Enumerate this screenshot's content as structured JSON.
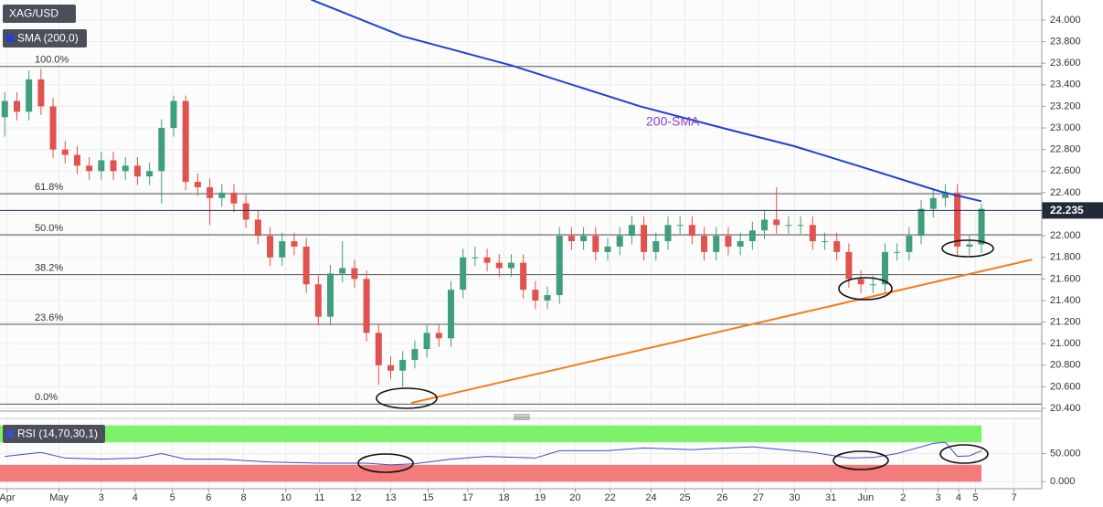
{
  "chart_data": [
    {
      "type": "candlestick",
      "title": "XAG/USD",
      "x": [
        0,
        1,
        2,
        3,
        4,
        5,
        6,
        7,
        8,
        9,
        10,
        11,
        12,
        13,
        14,
        15,
        16,
        17,
        18,
        19,
        20,
        21,
        22,
        23,
        24,
        25,
        26,
        27,
        28,
        29,
        30,
        31,
        32,
        33,
        34,
        35,
        36,
        37,
        38,
        39,
        40,
        41,
        42,
        43,
        44,
        45,
        46,
        47,
        48,
        49,
        50,
        51,
        52,
        53,
        54,
        55,
        56,
        57,
        58,
        59,
        60,
        61,
        62,
        63,
        64,
        65,
        66,
        67,
        68,
        69,
        70,
        71,
        72,
        73,
        74,
        75,
        76,
        77,
        78,
        79,
        80,
        81
      ],
      "open": [
        23.1,
        23.25,
        23.15,
        23.45,
        23.2,
        22.8,
        22.75,
        22.65,
        22.6,
        22.7,
        22.6,
        22.65,
        22.55,
        22.6,
        23.0,
        23.25,
        22.5,
        22.45,
        22.35,
        22.4,
        22.3,
        22.15,
        22.0,
        21.8,
        21.95,
        21.9,
        21.55,
        21.25,
        21.65,
        21.7,
        21.6,
        21.1,
        20.8,
        20.75,
        20.85,
        20.95,
        21.1,
        21.05,
        21.5,
        21.8,
        21.8,
        21.75,
        21.7,
        21.75,
        21.5,
        21.4,
        21.45,
        22.0,
        21.95,
        22.0,
        21.85,
        21.9,
        22.0,
        22.1,
        21.85,
        21.95,
        22.1,
        22.1,
        22.0,
        21.85,
        22.0,
        21.9,
        21.95,
        22.05,
        22.15,
        22.1,
        22.1,
        22.1,
        21.95,
        21.95,
        21.85,
        21.6,
        21.55,
        21.55,
        21.85,
        21.85,
        22.0,
        22.25,
        22.35,
        22.4,
        21.9,
        21.92
      ],
      "high": [
        23.33,
        23.33,
        23.53,
        23.55,
        23.28,
        22.88,
        22.83,
        22.73,
        22.78,
        22.78,
        22.73,
        22.73,
        22.68,
        23.08,
        23.3,
        23.3,
        22.58,
        22.53,
        22.48,
        22.48,
        22.38,
        22.23,
        22.08,
        22.03,
        22.03,
        21.98,
        21.63,
        21.73,
        21.95,
        21.78,
        21.68,
        21.18,
        20.88,
        20.93,
        21.03,
        21.18,
        21.18,
        21.58,
        21.88,
        21.9,
        21.88,
        21.83,
        21.83,
        21.83,
        21.58,
        21.53,
        22.08,
        22.08,
        22.08,
        22.08,
        21.98,
        22.08,
        22.18,
        22.18,
        22.03,
        22.18,
        22.18,
        22.18,
        22.08,
        22.08,
        22.08,
        22.03,
        22.13,
        22.23,
        22.45,
        22.18,
        22.18,
        22.18,
        22.03,
        22.03,
        21.93,
        21.68,
        21.63,
        21.93,
        21.93,
        22.08,
        22.33,
        22.43,
        22.48,
        22.48,
        22.0,
        22.3
      ],
      "low": [
        22.92,
        23.07,
        23.07,
        23.12,
        22.72,
        22.67,
        22.57,
        22.52,
        22.52,
        22.52,
        22.52,
        22.47,
        22.47,
        22.3,
        22.92,
        22.42,
        22.37,
        22.1,
        22.27,
        22.22,
        22.07,
        21.92,
        21.72,
        21.72,
        21.82,
        21.47,
        21.17,
        21.17,
        21.57,
        21.52,
        21.02,
        20.62,
        20.67,
        20.6,
        20.77,
        20.87,
        20.97,
        20.97,
        21.42,
        21.72,
        21.67,
        21.62,
        21.62,
        21.42,
        21.32,
        21.32,
        21.37,
        21.87,
        21.87,
        21.77,
        21.77,
        21.82,
        21.92,
        21.77,
        21.77,
        21.87,
        22.02,
        21.92,
        21.77,
        21.77,
        21.82,
        21.82,
        21.87,
        21.97,
        22.02,
        22.02,
        22.02,
        21.87,
        21.87,
        21.77,
        21.52,
        21.47,
        21.47,
        21.47,
        21.77,
        21.77,
        21.92,
        22.17,
        22.27,
        21.82,
        21.82,
        21.84
      ],
      "close": [
        23.25,
        23.15,
        23.45,
        23.2,
        22.8,
        22.75,
        22.65,
        22.6,
        22.7,
        22.6,
        22.65,
        22.55,
        22.6,
        23.0,
        23.25,
        22.5,
        22.45,
        22.35,
        22.4,
        22.3,
        22.15,
        22.0,
        21.8,
        21.95,
        21.9,
        21.55,
        21.25,
        21.65,
        21.7,
        21.6,
        21.1,
        20.8,
        20.75,
        20.85,
        20.95,
        21.1,
        21.05,
        21.5,
        21.8,
        21.8,
        21.75,
        21.7,
        21.75,
        21.5,
        21.4,
        21.45,
        22.0,
        21.95,
        22.0,
        21.85,
        21.9,
        22.0,
        22.1,
        21.85,
        21.95,
        22.1,
        22.1,
        22.0,
        21.85,
        22.0,
        21.9,
        21.95,
        22.05,
        22.15,
        22.1,
        22.1,
        22.1,
        21.95,
        21.95,
        21.85,
        21.6,
        21.55,
        21.55,
        21.85,
        21.85,
        22.0,
        22.25,
        22.35,
        22.4,
        21.9,
        21.92,
        22.25
      ],
      "up_color": "#3f9e7b",
      "down_color": "#e0524e",
      "overlays": [
        {
          "name": "SMA (200,0)",
          "color": "#1f3fd6",
          "x": [
            25.4,
            33,
            42,
            52.7,
            60.2,
            65.5,
            71.6,
            77.6,
            81
          ],
          "values": [
            24.19,
            23.85,
            23.58,
            23.2,
            22.98,
            22.83,
            22.62,
            22.41,
            22.32
          ]
        },
        {
          "color": "#f07f1e",
          "x": [
            33.7,
            85.2
          ],
          "values": [
            20.45,
            21.78
          ]
        }
      ],
      "fib_levels": [
        {
          "label": "100.0%",
          "value": 23.57
        },
        {
          "label": "61.8%",
          "value": 22.39
        },
        {
          "label": "50.0%",
          "value": 22.01
        },
        {
          "label": "38.2%",
          "value": 21.64
        },
        {
          "label": "23.6%",
          "value": 21.18
        },
        {
          "label": "0.0%",
          "value": 20.44
        }
      ],
      "annotations": [
        "200-SMA"
      ],
      "last_price": 22.235,
      "xlim": [
        -0.4,
        86
      ],
      "ylim": [
        20.375,
        24.186
      ],
      "yticks": [
        {
          "value": 24,
          "label": "24.000"
        },
        {
          "value": 23.8,
          "label": "23.800"
        },
        {
          "value": 23.6,
          "label": "23.600"
        },
        {
          "value": 23.4,
          "label": "23.400"
        },
        {
          "value": 23.2,
          "label": "23.200"
        },
        {
          "value": 23,
          "label": "23.000"
        },
        {
          "value": 22.8,
          "label": "22.800"
        },
        {
          "value": 22.6,
          "label": "22.600"
        },
        {
          "value": 22.4,
          "label": "22.400"
        },
        {
          "value": 22.2,
          "label": "22.200"
        },
        {
          "value": 22,
          "label": "22.000"
        },
        {
          "value": 21.8,
          "label": "21.800"
        },
        {
          "value": 21.6,
          "label": "21.600"
        },
        {
          "value": 21.4,
          "label": "21.400"
        },
        {
          "value": 21.2,
          "label": "21.200"
        },
        {
          "value": 21,
          "label": "21.000"
        },
        {
          "value": 20.8,
          "label": "20.800"
        },
        {
          "value": 20.6,
          "label": "20.600"
        },
        {
          "value": 20.4,
          "label": "20.400"
        }
      ],
      "grid": true
    },
    {
      "type": "line",
      "title": "RSI (14,70,30,1)",
      "x": [
        0,
        3,
        5,
        8,
        11,
        13,
        15,
        18,
        22,
        26,
        30,
        32,
        34,
        37,
        40,
        44,
        46,
        50,
        53,
        57,
        62,
        64,
        67,
        70,
        72,
        74,
        77,
        78,
        79,
        80,
        81
      ],
      "values": [
        45,
        52,
        42,
        40,
        42,
        50,
        40,
        40,
        35,
        33,
        33,
        30,
        32,
        40,
        45,
        42,
        55,
        55,
        60,
        57,
        62,
        58,
        52,
        42,
        43,
        50,
        68,
        70,
        45,
        46,
        55
      ],
      "color": "#3a4fd0",
      "bands": [
        {
          "from": 70,
          "to": 100,
          "color": "#7cf26a"
        },
        {
          "from": 0,
          "to": 30,
          "color": "#f47b7b"
        }
      ],
      "xlim": [
        -0.4,
        86
      ],
      "ylim": [
        -12.5,
        112.5
      ],
      "yticks": [
        {
          "value": 50,
          "label": "50.000"
        },
        {
          "value": 0,
          "label": "0.000"
        }
      ],
      "xticks": [
        {
          "value": 0.2,
          "label": "Apr"
        },
        {
          "value": 4.5,
          "label": "May"
        },
        {
          "value": 8,
          "label": "3"
        },
        {
          "value": 10.8,
          "label": "4"
        },
        {
          "value": 13.9,
          "label": "5"
        },
        {
          "value": 16.9,
          "label": "6"
        },
        {
          "value": 19.8,
          "label": "8"
        },
        {
          "value": 23.3,
          "label": "10"
        },
        {
          "value": 26.1,
          "label": "11"
        },
        {
          "value": 29.1,
          "label": "12"
        },
        {
          "value": 32,
          "label": "13"
        },
        {
          "value": 35.1,
          "label": "15"
        },
        {
          "value": 38.4,
          "label": "17"
        },
        {
          "value": 41.4,
          "label": "18"
        },
        {
          "value": 44.4,
          "label": "19"
        },
        {
          "value": 47.3,
          "label": "20"
        },
        {
          "value": 50.2,
          "label": "22"
        },
        {
          "value": 53.6,
          "label": "24"
        },
        {
          "value": 56.4,
          "label": "25"
        },
        {
          "value": 59.5,
          "label": "26"
        },
        {
          "value": 62.5,
          "label": "27"
        },
        {
          "value": 65.5,
          "label": "30"
        },
        {
          "value": 68.5,
          "label": "31"
        },
        {
          "value": 71.4,
          "label": "Jun"
        },
        {
          "value": 74.5,
          "label": "2"
        },
        {
          "value": 77.4,
          "label": "3"
        },
        {
          "value": 79.1,
          "label": "4"
        },
        {
          "value": 80.5,
          "label": "5"
        },
        {
          "value": 83.7,
          "label": "7"
        }
      ],
      "grid": true
    }
  ]
}
